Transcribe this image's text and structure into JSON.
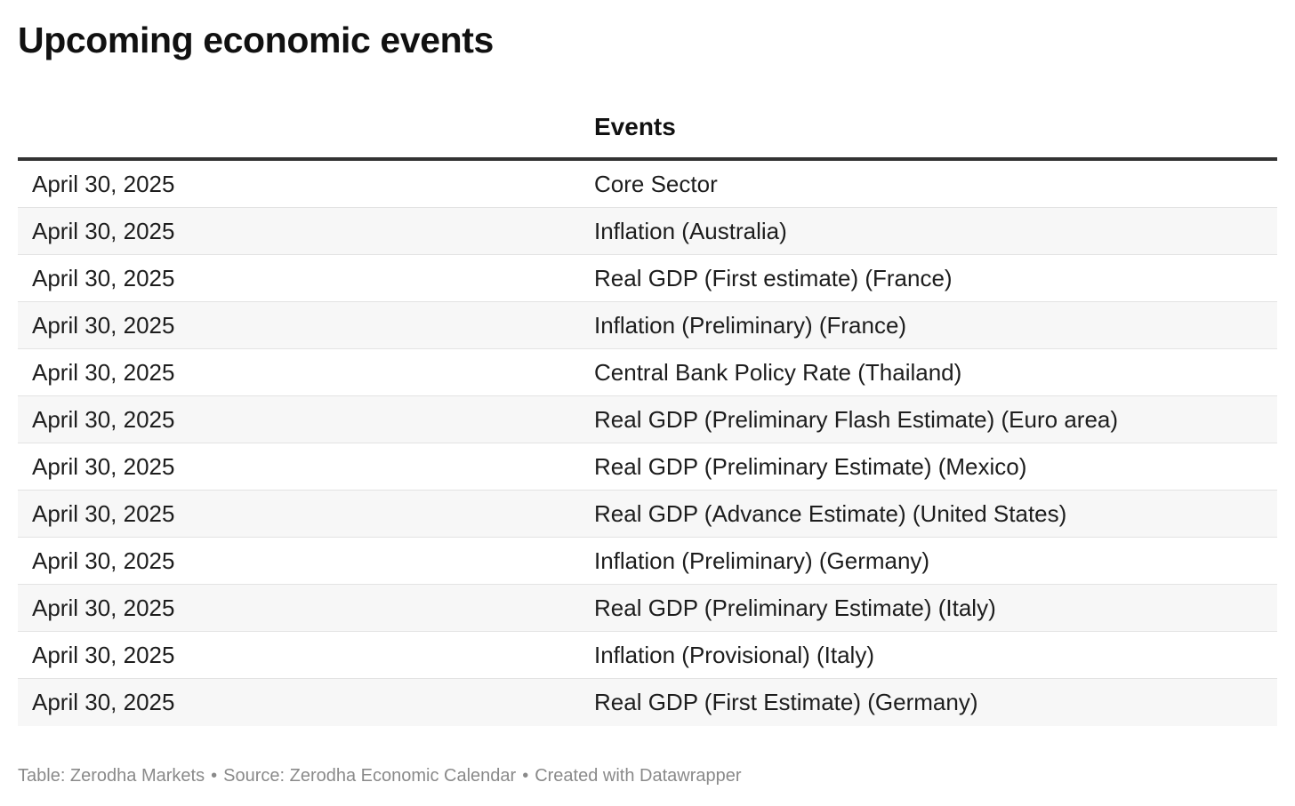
{
  "title": "Upcoming economic events",
  "table": {
    "headers": [
      "",
      "Events"
    ],
    "rows": [
      {
        "date": "April 30, 2025",
        "event": "Core Sector"
      },
      {
        "date": "April 30, 2025",
        "event": "Inflation (Australia)"
      },
      {
        "date": "April 30, 2025",
        "event": "Real GDP (First estimate) (France)"
      },
      {
        "date": "April 30, 2025",
        "event": "Inflation (Preliminary) (France)"
      },
      {
        "date": "April 30, 2025",
        "event": "Central Bank Policy Rate (Thailand)"
      },
      {
        "date": "April 30, 2025",
        "event": "Real GDP (Preliminary Flash Estimate) (Euro area)"
      },
      {
        "date": "April 30, 2025",
        "event": "Real GDP (Preliminary Estimate) (Mexico)"
      },
      {
        "date": "April 30, 2025",
        "event": "Real GDP (Advance Estimate) (United States)"
      },
      {
        "date": "April 30, 2025",
        "event": "Inflation (Preliminary) (Germany)"
      },
      {
        "date": "April 30, 2025",
        "event": "Real GDP (Preliminary Estimate) (Italy)"
      },
      {
        "date": "April 30, 2025",
        "event": "Inflation (Provisional) (Italy)"
      },
      {
        "date": "April 30, 2025",
        "event": "Real GDP (First Estimate) (Germany)"
      }
    ]
  },
  "footer": {
    "table_credit": "Table: Zerodha Markets",
    "source": "Source: Zerodha Economic Calendar",
    "created_with": "Created with Datawrapper",
    "separator": "•"
  },
  "colors": {
    "header_rule": "#333333",
    "row_alt_bg": "#f7f7f7",
    "row_divider": "#e3e3e3",
    "footer_text": "#8a8a8a"
  }
}
